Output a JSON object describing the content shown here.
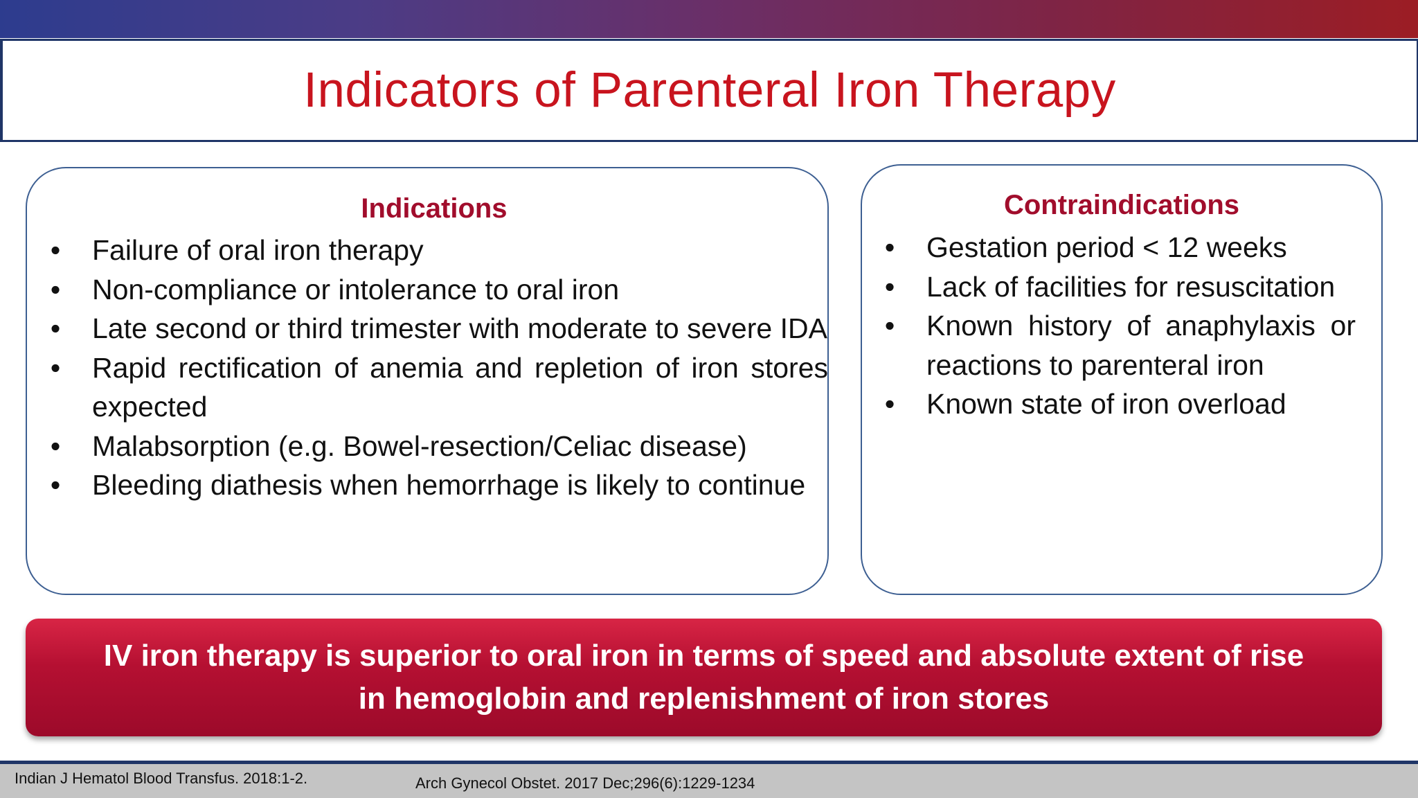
{
  "title": "Indicators of Parenteral Iron Therapy",
  "indications": {
    "heading": "Indications",
    "items": [
      "Failure of oral iron therapy",
      "Non-compliance or intolerance to oral iron",
      "Late second or third trimester with moderate to severe IDA",
      "Rapid rectification of anemia and repletion of iron stores expected",
      "Malabsorption (e.g. Bowel-resection/Celiac disease)",
      "Bleeding diathesis when hemorrhage is likely to continue"
    ]
  },
  "contraindications": {
    "heading": "Contraindications",
    "items": [
      "Gestation period < 12 weeks",
      "Lack of facilities for resuscitation",
      "Known history of anaphylaxis or reactions to parenteral iron",
      "Known state of iron overload"
    ]
  },
  "banner": "IV iron therapy is superior to oral iron in terms of speed and absolute extent of rise in hemoglobin and replenishment of iron stores",
  "citations": [
    "Indian J Hematol Blood Transfus. 2018:1-2.",
    "Arch Gynecol Obstet. 2017 Dec;296(6):1229-1234"
  ],
  "bullet_glyph": "•",
  "colors": {
    "title": "#c8141e",
    "heading": "#a10d2c",
    "banner": "#b51032",
    "frame": "#1f3567"
  }
}
